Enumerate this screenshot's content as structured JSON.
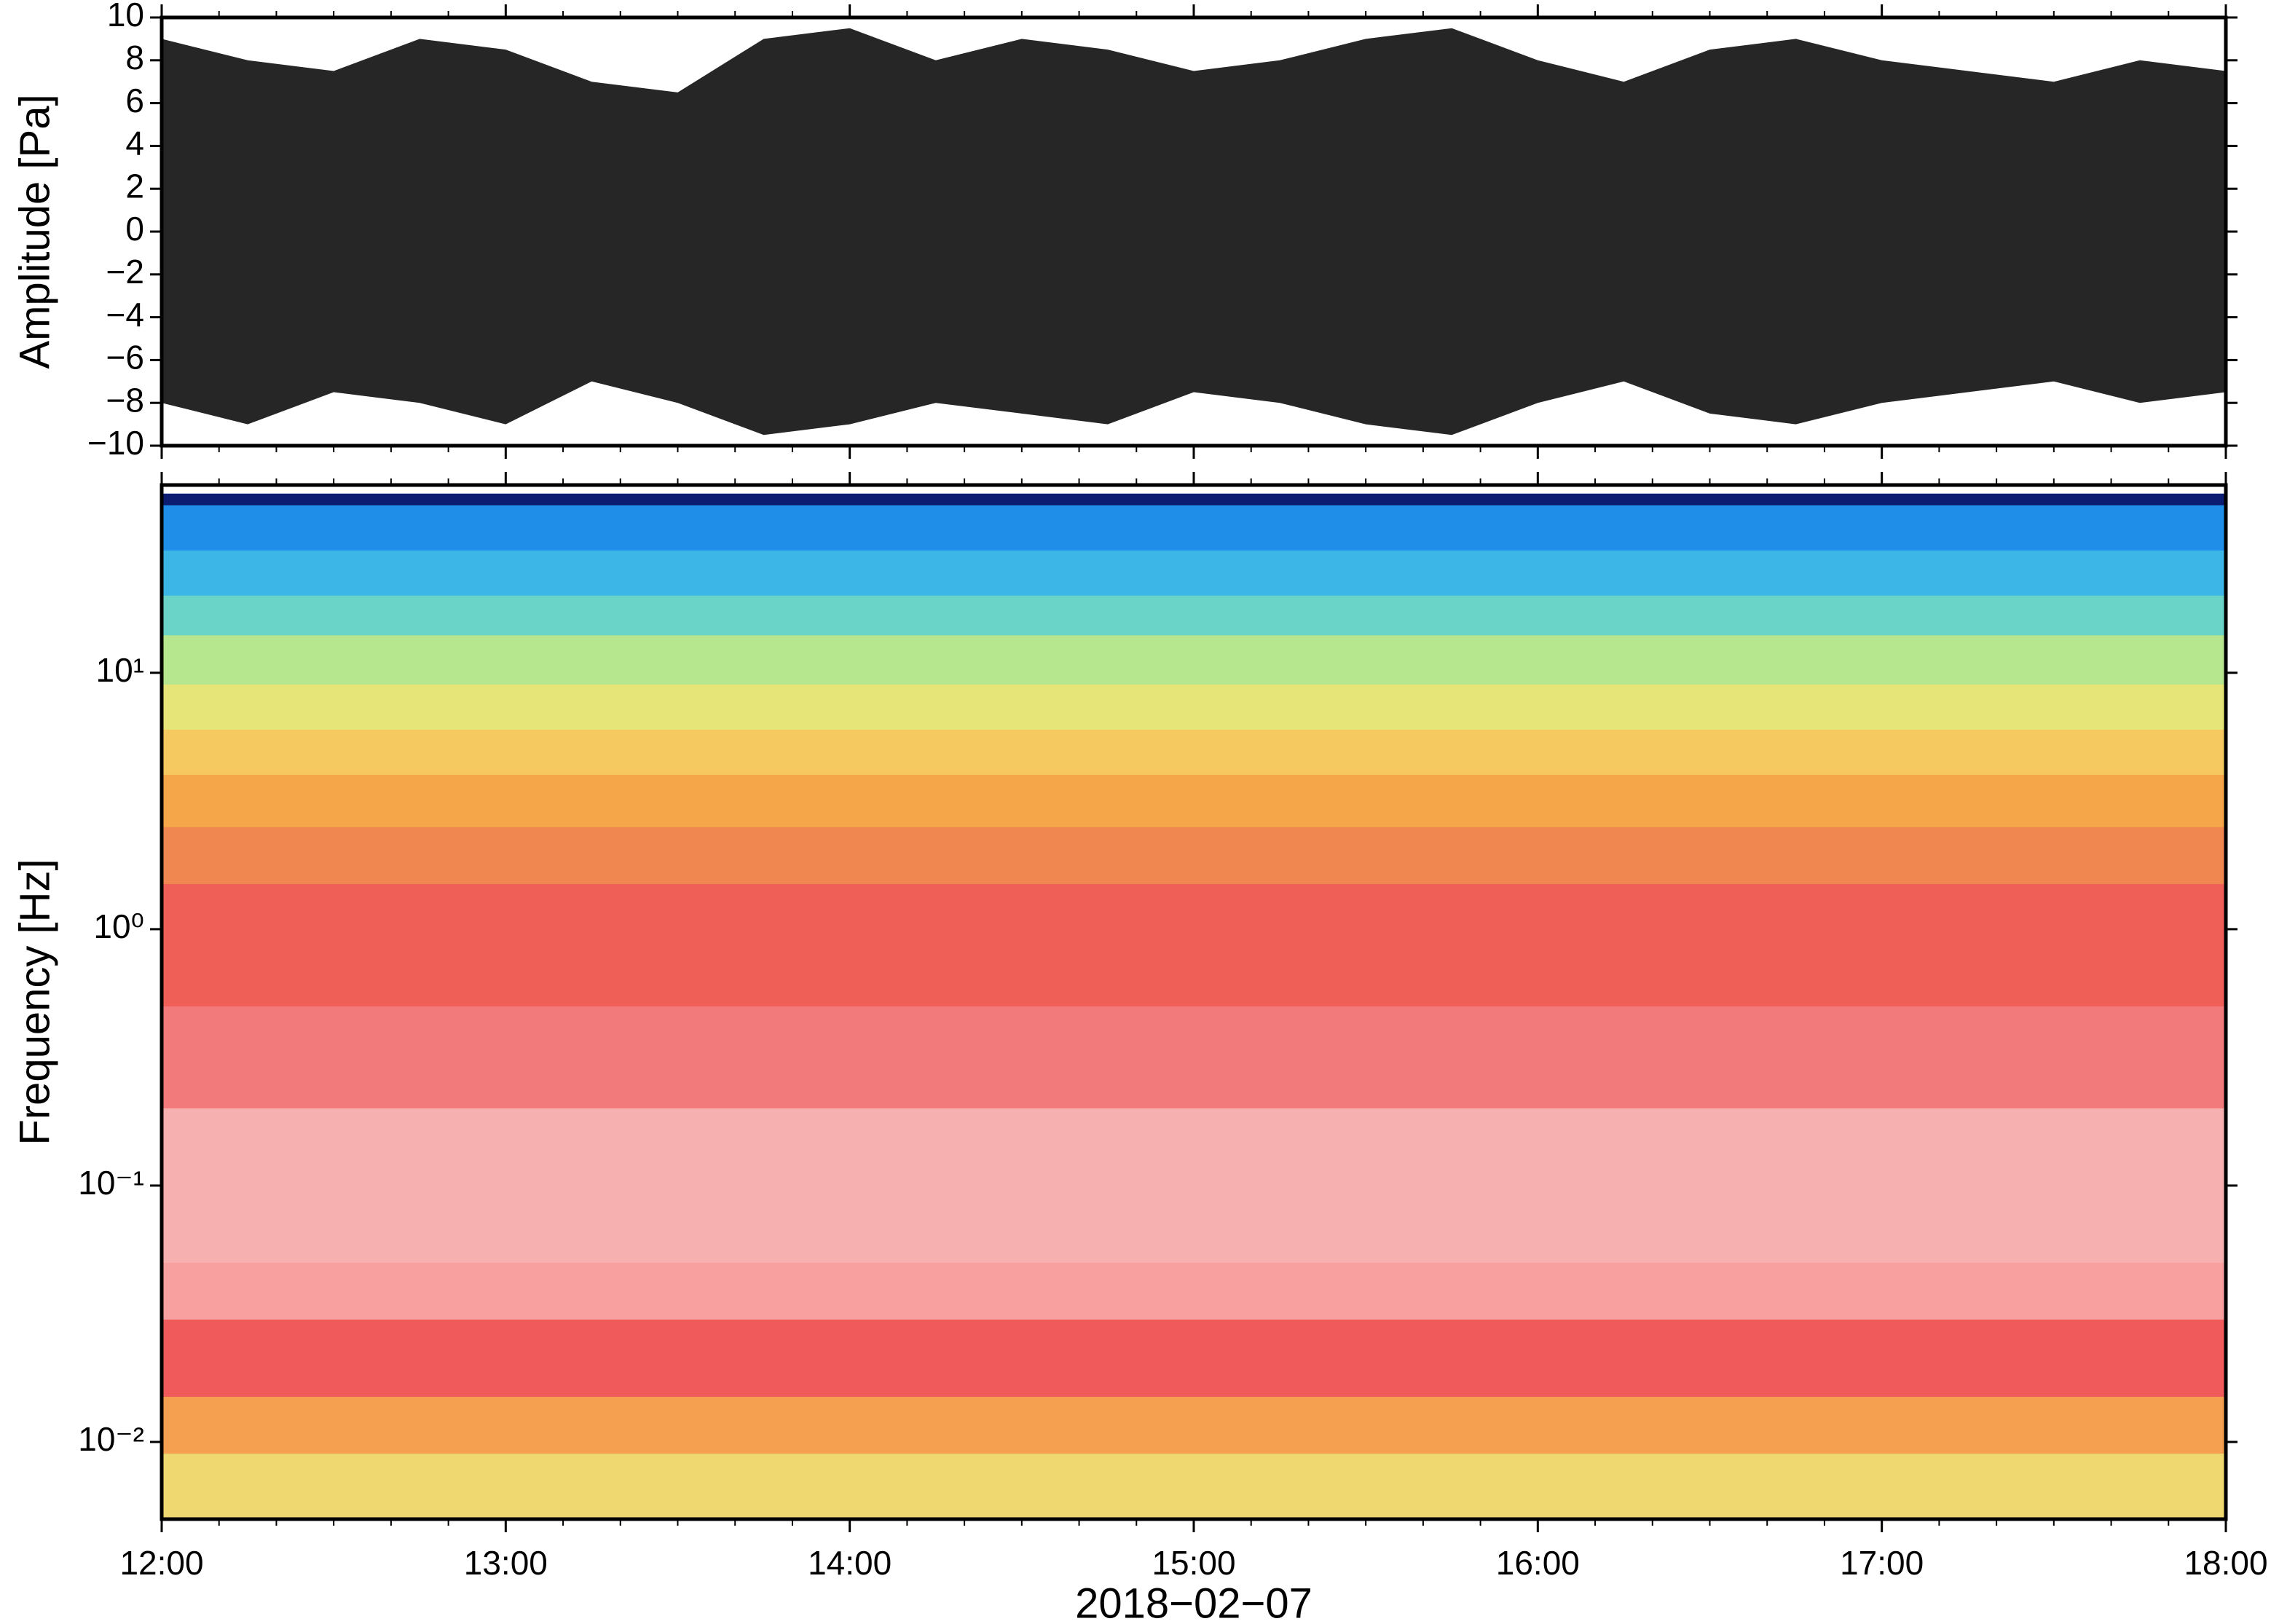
{
  "chart_data": [
    {
      "type": "waveform",
      "ylabel": "Amplitude [Pa]",
      "x": [
        12,
        12.25,
        12.5,
        12.75,
        13,
        13.25,
        13.5,
        13.75,
        14,
        14.25,
        14.5,
        14.75,
        15,
        15.25,
        15.5,
        15.75,
        16,
        16.25,
        16.5,
        16.75,
        17,
        17.25,
        17.5,
        17.75,
        18
      ],
      "upper": [
        9,
        8,
        7.5,
        9,
        8.5,
        7,
        6.5,
        9,
        9.5,
        8,
        9,
        8.5,
        7.5,
        8,
        9,
        9.5,
        8,
        7,
        8.5,
        9,
        8,
        7.5,
        7,
        8,
        7.5
      ],
      "lower": [
        -8,
        -9,
        -7.5,
        -8,
        -9,
        -7,
        -8,
        -9.5,
        -9,
        -8,
        -8.5,
        -9,
        -7.5,
        -8,
        -9,
        -9.5,
        -8,
        -7,
        -8.5,
        -9,
        -8,
        -7.5,
        -7,
        -8,
        -7.5
      ],
      "color": "#000000",
      "xlim": [
        12,
        18
      ],
      "ylim": [
        -10,
        10
      ],
      "yticks": [
        {
          "value": -10,
          "label": "−10"
        },
        {
          "value": -8,
          "label": "−8"
        },
        {
          "value": -6,
          "label": "−6"
        },
        {
          "value": -4,
          "label": "−4"
        },
        {
          "value": -2,
          "label": "−2"
        },
        0,
        2,
        4,
        6,
        8,
        10
      ]
    },
    {
      "type": "spectrogram",
      "ylabel": "Frequency [Hz]",
      "xlabel": "2018−02−07",
      "log_y": true,
      "xlim": [
        12,
        18
      ],
      "xticks": [
        {
          "value": 12,
          "label": "12:00"
        },
        {
          "value": 13,
          "label": "13:00"
        },
        {
          "value": 14,
          "label": "14:00"
        },
        {
          "value": 15,
          "label": "15:00"
        },
        {
          "value": 16,
          "label": "16:00"
        },
        {
          "value": 17,
          "label": "17:00"
        },
        {
          "value": 18,
          "label": "18:00"
        }
      ],
      "ylim": [
        0.005,
        54
      ],
      "yticks": [
        {
          "value": 0.01,
          "label": "10⁻²"
        },
        {
          "value": 0.1,
          "label": "10⁻¹"
        },
        {
          "value": 1,
          "label": "10⁰"
        },
        {
          "value": 10,
          "label": "10¹"
        }
      ],
      "band_edges": [
        50,
        45,
        30,
        20,
        14,
        9,
        6,
        4,
        2.5,
        1.5,
        0.5,
        0.2,
        0.05,
        0.03,
        0.015,
        0.009,
        0.005
      ],
      "band_colors": [
        "#0c1c70",
        "#1e8ee8",
        "#3cb6e6",
        "#6ad4c8",
        "#b6e68e",
        "#e6e678",
        "#f5c860",
        "#f5a648",
        "#f08650",
        "#f05e58",
        "#f27a7a",
        "#f7b0b0",
        "#f8a0a0",
        "#f05a5a",
        "#f5a050",
        "#f0d870"
      ]
    }
  ]
}
